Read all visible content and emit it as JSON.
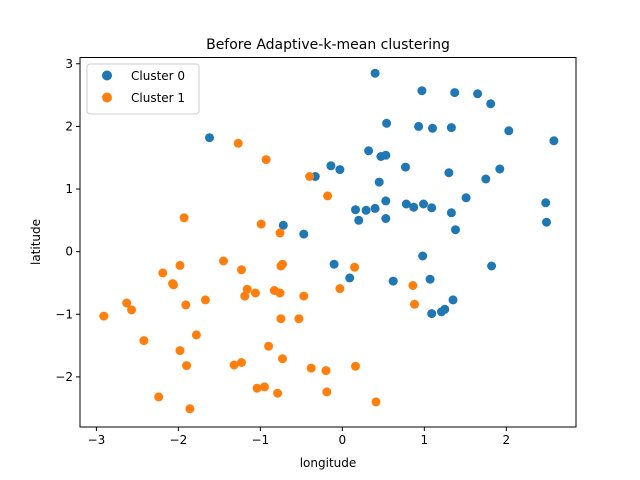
{
  "chart_data": {
    "type": "scatter",
    "title": "Before Adaptive-k-mean clustering",
    "xlabel": "longitude",
    "ylabel": "latitude",
    "xlim": [
      -3.2,
      2.85
    ],
    "ylim": [
      -2.8,
      3.1
    ],
    "xticks": [
      -3,
      -2,
      -1,
      0,
      1,
      2
    ],
    "yticks": [
      -2,
      -1,
      0,
      1,
      2,
      3
    ],
    "grid": false,
    "legend_position": "top-left",
    "series": [
      {
        "name": "Cluster 0",
        "color": "#1f77b4",
        "points": [
          [
            0.4,
            2.85
          ],
          [
            0.97,
            2.57
          ],
          [
            1.37,
            2.54
          ],
          [
            1.65,
            2.52
          ],
          [
            1.81,
            2.36
          ],
          [
            0.54,
            2.05
          ],
          [
            0.93,
            2.0
          ],
          [
            1.1,
            1.97
          ],
          [
            1.33,
            1.98
          ],
          [
            2.03,
            1.93
          ],
          [
            2.58,
            1.77
          ],
          [
            -1.62,
            1.82
          ],
          [
            0.32,
            1.61
          ],
          [
            0.47,
            1.52
          ],
          [
            0.53,
            1.54
          ],
          [
            -0.14,
            1.37
          ],
          [
            0.77,
            1.35
          ],
          [
            -0.03,
            1.31
          ],
          [
            1.92,
            1.32
          ],
          [
            1.3,
            1.26
          ],
          [
            -0.33,
            1.2
          ],
          [
            1.75,
            1.16
          ],
          [
            0.45,
            1.11
          ],
          [
            1.51,
            0.86
          ],
          [
            0.53,
            0.81
          ],
          [
            0.78,
            0.76
          ],
          [
            0.87,
            0.71
          ],
          [
            0.99,
            0.76
          ],
          [
            1.09,
            0.7
          ],
          [
            2.48,
            0.78
          ],
          [
            0.16,
            0.67
          ],
          [
            0.29,
            0.66
          ],
          [
            0.4,
            0.69
          ],
          [
            1.33,
            0.62
          ],
          [
            0.2,
            0.5
          ],
          [
            0.53,
            0.53
          ],
          [
            2.49,
            0.47
          ],
          [
            -0.72,
            0.42
          ],
          [
            -0.47,
            0.28
          ],
          [
            1.38,
            0.35
          ],
          [
            0.98,
            -0.07
          ],
          [
            -0.1,
            -0.2
          ],
          [
            1.82,
            -0.23
          ],
          [
            0.09,
            -0.42
          ],
          [
            0.62,
            -0.47
          ],
          [
            1.07,
            -0.44
          ],
          [
            1.35,
            -0.77
          ],
          [
            1.09,
            -0.99
          ],
          [
            1.21,
            -0.96
          ],
          [
            1.25,
            -0.92
          ]
        ]
      },
      {
        "name": "Cluster 1",
        "color": "#ff7f0e",
        "points": [
          [
            -1.27,
            1.73
          ],
          [
            -0.93,
            1.47
          ],
          [
            -0.4,
            1.2
          ],
          [
            -0.18,
            0.89
          ],
          [
            -1.93,
            0.54
          ],
          [
            -0.99,
            0.44
          ],
          [
            -0.76,
            0.3
          ],
          [
            -1.45,
            -0.15
          ],
          [
            -1.98,
            -0.22
          ],
          [
            -0.73,
            -0.2
          ],
          [
            -0.75,
            -0.23
          ],
          [
            -1.23,
            -0.29
          ],
          [
            0.15,
            -0.25
          ],
          [
            -2.19,
            -0.34
          ],
          [
            -2.07,
            -0.51
          ],
          [
            -2.06,
            -0.53
          ],
          [
            -1.16,
            -0.6
          ],
          [
            -0.83,
            -0.62
          ],
          [
            -0.03,
            -0.59
          ],
          [
            0.86,
            -0.54
          ],
          [
            -1.06,
            -0.66
          ],
          [
            -0.76,
            -0.66
          ],
          [
            -1.19,
            -0.71
          ],
          [
            -0.47,
            -0.71
          ],
          [
            -1.67,
            -0.77
          ],
          [
            -2.63,
            -0.82
          ],
          [
            -1.91,
            -0.85
          ],
          [
            0.88,
            -0.84
          ],
          [
            -2.57,
            -0.93
          ],
          [
            -2.91,
            -1.03
          ],
          [
            -0.75,
            -1.07
          ],
          [
            -0.53,
            -1.07
          ],
          [
            -1.78,
            -1.33
          ],
          [
            -2.42,
            -1.42
          ],
          [
            -0.9,
            -1.51
          ],
          [
            -1.98,
            -1.58
          ],
          [
            -0.73,
            -1.71
          ],
          [
            -1.23,
            -1.77
          ],
          [
            -1.32,
            -1.81
          ],
          [
            -1.9,
            -1.82
          ],
          [
            -0.38,
            -1.86
          ],
          [
            0.16,
            -1.83
          ],
          [
            -0.2,
            -1.9
          ],
          [
            -0.95,
            -2.16
          ],
          [
            -1.04,
            -2.18
          ],
          [
            -0.79,
            -2.26
          ],
          [
            -0.19,
            -2.24
          ],
          [
            -2.24,
            -2.32
          ],
          [
            0.41,
            -2.4
          ],
          [
            -1.86,
            -2.51
          ]
        ]
      }
    ]
  }
}
